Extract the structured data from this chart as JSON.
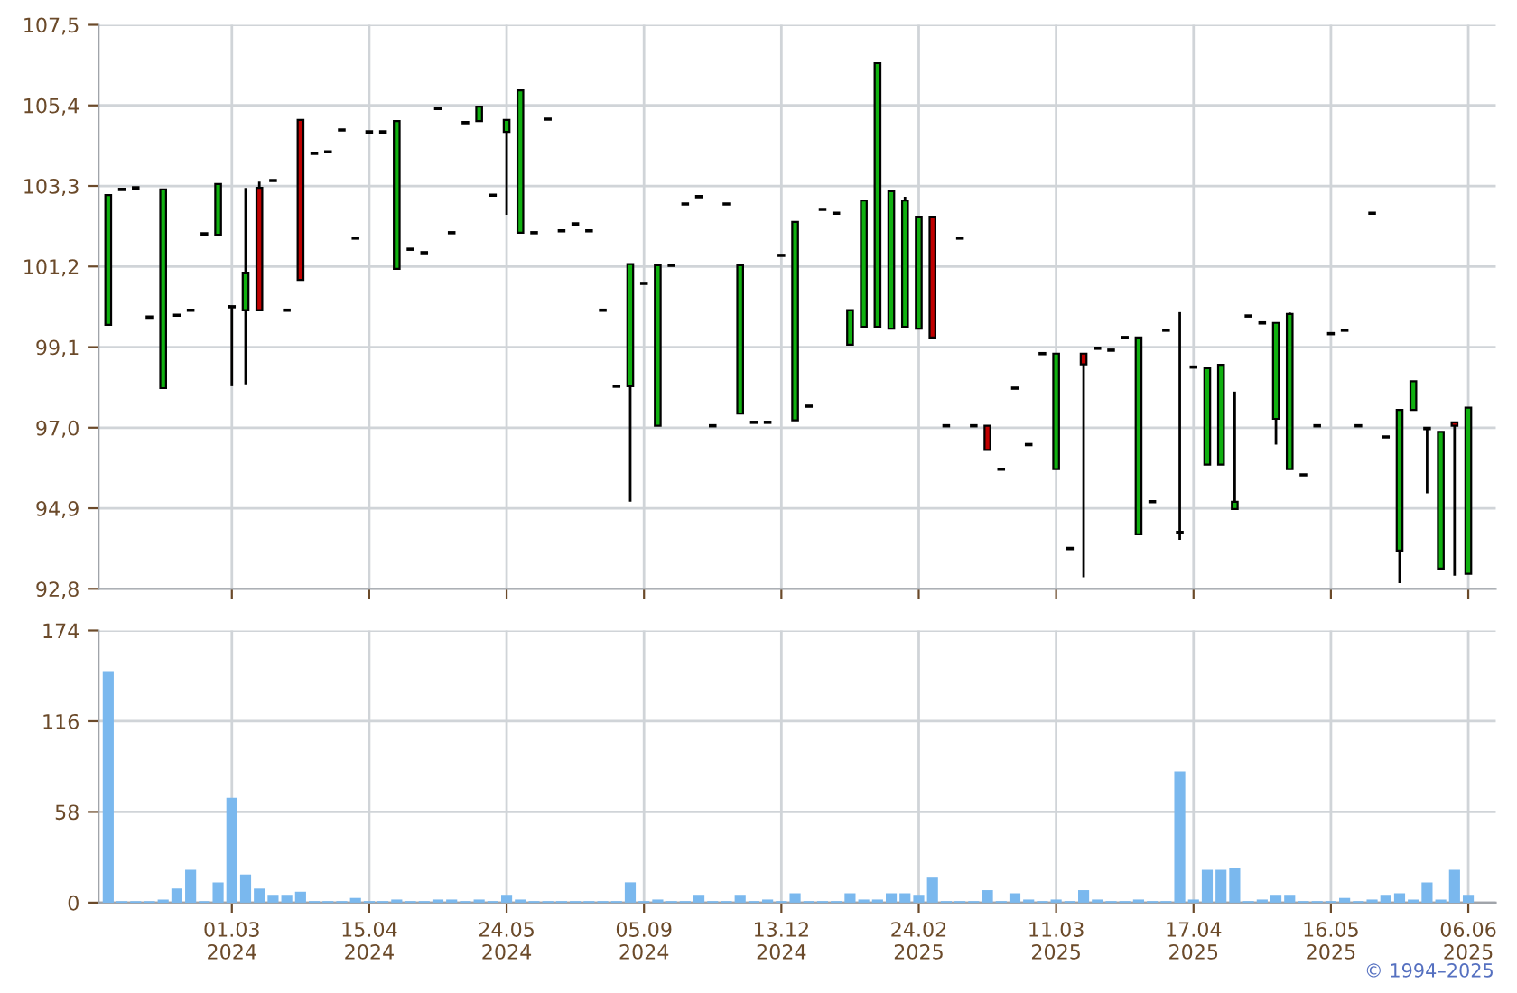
{
  "chart_data": [
    {
      "type": "candlestick",
      "categories": [
        null,
        null,
        null,
        null,
        null,
        null,
        null,
        null,
        null,
        null,
        null,
        null,
        null,
        null,
        null,
        null,
        null,
        null,
        null,
        null,
        null,
        null,
        null,
        null,
        null,
        null,
        null,
        null,
        null,
        null,
        null,
        null,
        null,
        null,
        null,
        null,
        null,
        null,
        null,
        null,
        null,
        null,
        null,
        null,
        null,
        null,
        null,
        null,
        null,
        null,
        null,
        null,
        null,
        null,
        null,
        null,
        null,
        null,
        null,
        null,
        null,
        null,
        null,
        null,
        null,
        null,
        null,
        null,
        null,
        null,
        null,
        null,
        null,
        null,
        null,
        null,
        null,
        null,
        null,
        null,
        null,
        null,
        null,
        null,
        null,
        null,
        null,
        null,
        null,
        null,
        null,
        null,
        null,
        null,
        null,
        null,
        null,
        null,
        null,
        null
      ],
      "ohlc": [
        [
          99.68,
          103.06,
          99.68,
          103.06
        ],
        [
          103.21,
          103.21,
          103.21,
          103.21
        ],
        [
          103.25,
          103.25,
          103.25,
          103.25
        ],
        [
          99.88,
          99.88,
          99.88,
          99.88
        ],
        [
          98.03,
          103.21,
          98.03,
          103.21
        ],
        [
          99.93,
          99.93,
          99.93,
          99.93
        ],
        [
          100.06,
          100.06,
          100.06,
          100.06
        ],
        [
          102.05,
          102.05,
          102.05,
          102.05
        ],
        [
          102.03,
          103.35,
          102.03,
          103.35
        ],
        [
          100.15,
          100.15,
          98.08,
          100.15
        ],
        [
          100.06,
          103.25,
          98.13,
          101.04
        ],
        [
          103.25,
          103.41,
          100.06,
          100.06
        ],
        [
          103.44,
          103.44,
          103.44,
          103.44
        ],
        [
          100.06,
          100.06,
          100.06,
          100.06
        ],
        [
          105.02,
          105.02,
          100.85,
          100.85
        ],
        [
          104.15,
          104.15,
          104.15,
          104.15
        ],
        [
          104.19,
          104.19,
          104.19,
          104.19
        ],
        [
          104.76,
          104.76,
          104.76,
          104.76
        ],
        [
          101.94,
          101.94,
          101.94,
          101.94
        ],
        [
          104.71,
          104.71,
          104.71,
          104.71
        ],
        [
          104.71,
          104.71,
          104.71,
          104.71
        ],
        [
          101.14,
          104.99,
          101.14,
          104.99
        ],
        [
          101.65,
          101.65,
          101.65,
          101.65
        ],
        [
          101.56,
          101.56,
          101.56,
          101.56
        ],
        [
          105.32,
          105.32,
          105.32,
          105.32
        ],
        [
          102.08,
          102.08,
          102.08,
          102.08
        ],
        [
          104.95,
          104.95,
          104.95,
          104.95
        ],
        [
          104.99,
          105.37,
          104.99,
          105.37
        ],
        [
          103.06,
          103.06,
          103.06,
          103.06
        ],
        [
          104.71,
          105.02,
          102.55,
          105.02
        ],
        [
          102.08,
          105.79,
          102.08,
          105.79
        ],
        [
          102.08,
          102.08,
          102.08,
          102.08
        ],
        [
          105.04,
          105.04,
          105.04,
          105.04
        ],
        [
          102.13,
          102.13,
          102.13,
          102.13
        ],
        [
          102.31,
          102.31,
          102.31,
          102.31
        ],
        [
          102.13,
          102.13,
          102.13,
          102.13
        ],
        [
          100.06,
          100.06,
          100.06,
          100.06
        ],
        [
          98.08,
          98.08,
          98.08,
          98.08
        ],
        [
          98.08,
          101.26,
          95.07,
          101.26
        ],
        [
          100.76,
          100.76,
          100.76,
          100.76
        ],
        [
          97.05,
          101.23,
          97.05,
          101.23
        ],
        [
          101.23,
          101.23,
          101.23,
          101.23
        ],
        [
          102.83,
          102.83,
          102.83,
          102.83
        ],
        [
          103.02,
          103.02,
          103.02,
          103.02
        ],
        [
          97.05,
          97.05,
          97.05,
          97.05
        ],
        [
          102.83,
          102.83,
          102.83,
          102.83
        ],
        [
          97.37,
          101.23,
          97.37,
          101.23
        ],
        [
          97.14,
          97.14,
          97.14,
          97.14
        ],
        [
          97.14,
          97.14,
          97.14,
          97.14
        ],
        [
          101.49,
          101.49,
          101.49,
          101.49
        ],
        [
          97.19,
          102.36,
          97.19,
          102.36
        ],
        [
          97.56,
          97.56,
          97.56,
          97.56
        ],
        [
          102.69,
          102.69,
          102.69,
          102.69
        ],
        [
          102.59,
          102.59,
          102.59,
          102.59
        ],
        [
          99.16,
          100.06,
          99.16,
          100.06
        ],
        [
          99.63,
          102.92,
          99.63,
          102.92
        ],
        [
          99.63,
          106.5,
          99.63,
          106.5
        ],
        [
          99.58,
          103.16,
          99.58,
          103.16
        ],
        [
          99.63,
          103.02,
          99.63,
          102.92
        ],
        [
          99.58,
          102.5,
          99.58,
          102.5
        ],
        [
          102.5,
          102.5,
          99.35,
          99.35
        ],
        [
          97.05,
          97.05,
          97.05,
          97.05
        ],
        [
          101.94,
          101.94,
          101.94,
          101.94
        ],
        [
          97.05,
          97.05,
          97.05,
          97.05
        ],
        [
          97.05,
          97.05,
          96.42,
          96.42
        ],
        [
          95.92,
          95.92,
          95.92,
          95.92
        ],
        [
          98.03,
          98.03,
          98.03,
          98.03
        ],
        [
          96.56,
          96.56,
          96.56,
          96.56
        ],
        [
          98.93,
          98.93,
          98.93,
          98.93
        ],
        [
          95.92,
          98.93,
          95.92,
          98.93
        ],
        [
          93.85,
          93.85,
          93.85,
          93.85
        ],
        [
          98.93,
          98.93,
          93.1,
          98.65
        ],
        [
          99.07,
          99.07,
          99.07,
          99.07
        ],
        [
          99.02,
          99.02,
          99.02,
          99.02
        ],
        [
          99.35,
          99.35,
          99.35,
          99.35
        ],
        [
          94.22,
          99.35,
          94.22,
          99.35
        ],
        [
          95.07,
          95.07,
          95.07,
          95.07
        ],
        [
          99.54,
          99.54,
          99.54,
          99.54
        ],
        [
          94.27,
          100.01,
          94.08,
          94.27
        ],
        [
          98.58,
          98.58,
          98.58,
          98.58
        ],
        [
          96.04,
          98.55,
          96.04,
          98.55
        ],
        [
          96.04,
          98.64,
          96.04,
          98.64
        ],
        [
          94.88,
          97.94,
          94.88,
          95.07
        ],
        [
          99.91,
          99.91,
          99.91,
          99.91
        ],
        [
          99.73,
          99.73,
          99.73,
          99.73
        ],
        [
          97.23,
          99.73,
          96.56,
          99.73
        ],
        [
          95.92,
          100.0,
          95.92,
          99.96
        ],
        [
          95.77,
          95.77,
          95.77,
          95.77
        ],
        [
          97.05,
          97.05,
          97.05,
          97.05
        ],
        [
          99.45,
          99.45,
          99.45,
          99.45
        ],
        [
          99.54,
          99.54,
          99.54,
          99.54
        ],
        [
          97.05,
          97.05,
          97.05,
          97.05
        ],
        [
          102.59,
          102.59,
          102.59,
          102.59
        ],
        [
          96.76,
          96.76,
          96.76,
          96.76
        ],
        [
          93.8,
          97.46,
          92.95,
          97.46
        ],
        [
          97.46,
          98.21,
          97.46,
          98.21
        ],
        [
          96.98,
          96.98,
          95.29,
          96.98
        ],
        [
          93.33,
          96.89,
          93.33,
          96.89
        ],
        [
          97.14,
          97.14,
          93.14,
          97.05
        ],
        [
          93.19,
          97.52,
          93.19,
          97.52
        ]
      ],
      "colors": [
        "#10b010",
        "#000000",
        "#000000",
        "#000000",
        "#10b010",
        "#000000",
        "#000000",
        "#000000",
        "#10b010",
        "#000000",
        "#10b010",
        "#c00000",
        "#000000",
        "#000000",
        "#c00000",
        "#000000",
        "#000000",
        "#000000",
        "#000000",
        "#000000",
        "#000000",
        "#10b010",
        "#000000",
        "#000000",
        "#000000",
        "#000000",
        "#000000",
        "#10b010",
        "#000000",
        "#10b010",
        "#10b010",
        "#000000",
        "#000000",
        "#000000",
        "#000000",
        "#000000",
        "#000000",
        "#000000",
        "#10b010",
        "#000000",
        "#10b010",
        "#000000",
        "#000000",
        "#000000",
        "#000000",
        "#000000",
        "#10b010",
        "#000000",
        "#000000",
        "#000000",
        "#10b010",
        "#000000",
        "#000000",
        "#000000",
        "#10b010",
        "#10b010",
        "#10b010",
        "#10b010",
        "#10b010",
        "#10b010",
        "#c00000",
        "#000000",
        "#000000",
        "#000000",
        "#c00000",
        "#000000",
        "#000000",
        "#000000",
        "#000000",
        "#10b010",
        "#000000",
        "#c00000",
        "#000000",
        "#000000",
        "#000000",
        "#10b010",
        "#000000",
        "#000000",
        "#000000",
        "#000000",
        "#10b010",
        "#10b010",
        "#10b010",
        "#000000",
        "#000000",
        "#10b010",
        "#10b010",
        "#000000",
        "#000000",
        "#000000",
        "#000000",
        "#000000",
        "#000000",
        "#000000",
        "#10b010",
        "#10b010",
        "#000000",
        "#10b010",
        "#c00000",
        "#10b010"
      ],
      "ylim": [
        92.8,
        107.5
      ],
      "yticks": [
        {
          "value": 92.8,
          "label": "92,8"
        },
        {
          "value": 94.9,
          "label": "94,9"
        },
        {
          "value": 97.0,
          "label": "97,0"
        },
        {
          "value": 99.1,
          "label": "99,1"
        },
        {
          "value": 101.2,
          "label": "101,2"
        },
        {
          "value": 103.3,
          "label": "103,3"
        },
        {
          "value": 105.4,
          "label": "105,4"
        },
        {
          "value": 107.5,
          "label": "107,5"
        }
      ],
      "grid": true,
      "tick_labels": "y"
    },
    {
      "type": "bar",
      "categories": [
        null,
        null,
        null,
        null,
        null,
        null,
        null,
        null,
        null,
        "01.03\n2024",
        null,
        null,
        null,
        null,
        null,
        null,
        null,
        null,
        null,
        "15.04\n2024",
        null,
        null,
        null,
        null,
        null,
        null,
        null,
        null,
        null,
        "24.05\n2024",
        null,
        null,
        null,
        null,
        null,
        null,
        null,
        null,
        null,
        "05.09\n2024",
        null,
        null,
        null,
        null,
        null,
        null,
        null,
        null,
        null,
        "13.12\n2024",
        null,
        null,
        null,
        null,
        null,
        null,
        null,
        null,
        null,
        "24.02\n2025",
        null,
        null,
        null,
        null,
        null,
        null,
        null,
        null,
        null,
        "11.03\n2025",
        null,
        null,
        null,
        null,
        null,
        null,
        null,
        null,
        null,
        "17.04\n2025",
        null,
        null,
        null,
        null,
        null,
        null,
        null,
        null,
        null,
        "16.05\n2025",
        null,
        null,
        null,
        null,
        null,
        null,
        null,
        null,
        null,
        "06.06\n2025"
      ],
      "values": [
        148,
        1,
        1,
        1,
        2,
        9,
        21,
        1,
        13,
        67,
        18,
        9,
        5,
        5,
        7,
        1,
        1,
        1,
        3,
        1,
        1,
        2,
        1,
        1,
        2,
        2,
        1,
        2,
        1,
        5,
        2,
        1,
        1,
        1,
        1,
        1,
        1,
        1,
        13,
        1,
        2,
        1,
        1,
        5,
        1,
        1,
        5,
        1,
        2,
        1,
        6,
        1,
        1,
        1,
        6,
        2,
        2,
        6,
        6,
        5,
        16,
        1,
        1,
        1,
        8,
        1,
        6,
        2,
        1,
        2,
        1,
        8,
        2,
        1,
        1,
        2,
        1,
        1,
        84,
        2,
        21,
        21,
        22,
        1,
        2,
        5,
        5,
        1,
        1,
        1,
        3,
        1,
        2,
        5,
        6,
        2,
        13,
        2,
        21,
        5
      ],
      "color": "#7ab8ee",
      "ylim": [
        0,
        174
      ],
      "yticks": [
        0,
        58,
        116,
        174
      ],
      "grid": true,
      "annotations": [
        "© 1994–2025"
      ]
    }
  ]
}
